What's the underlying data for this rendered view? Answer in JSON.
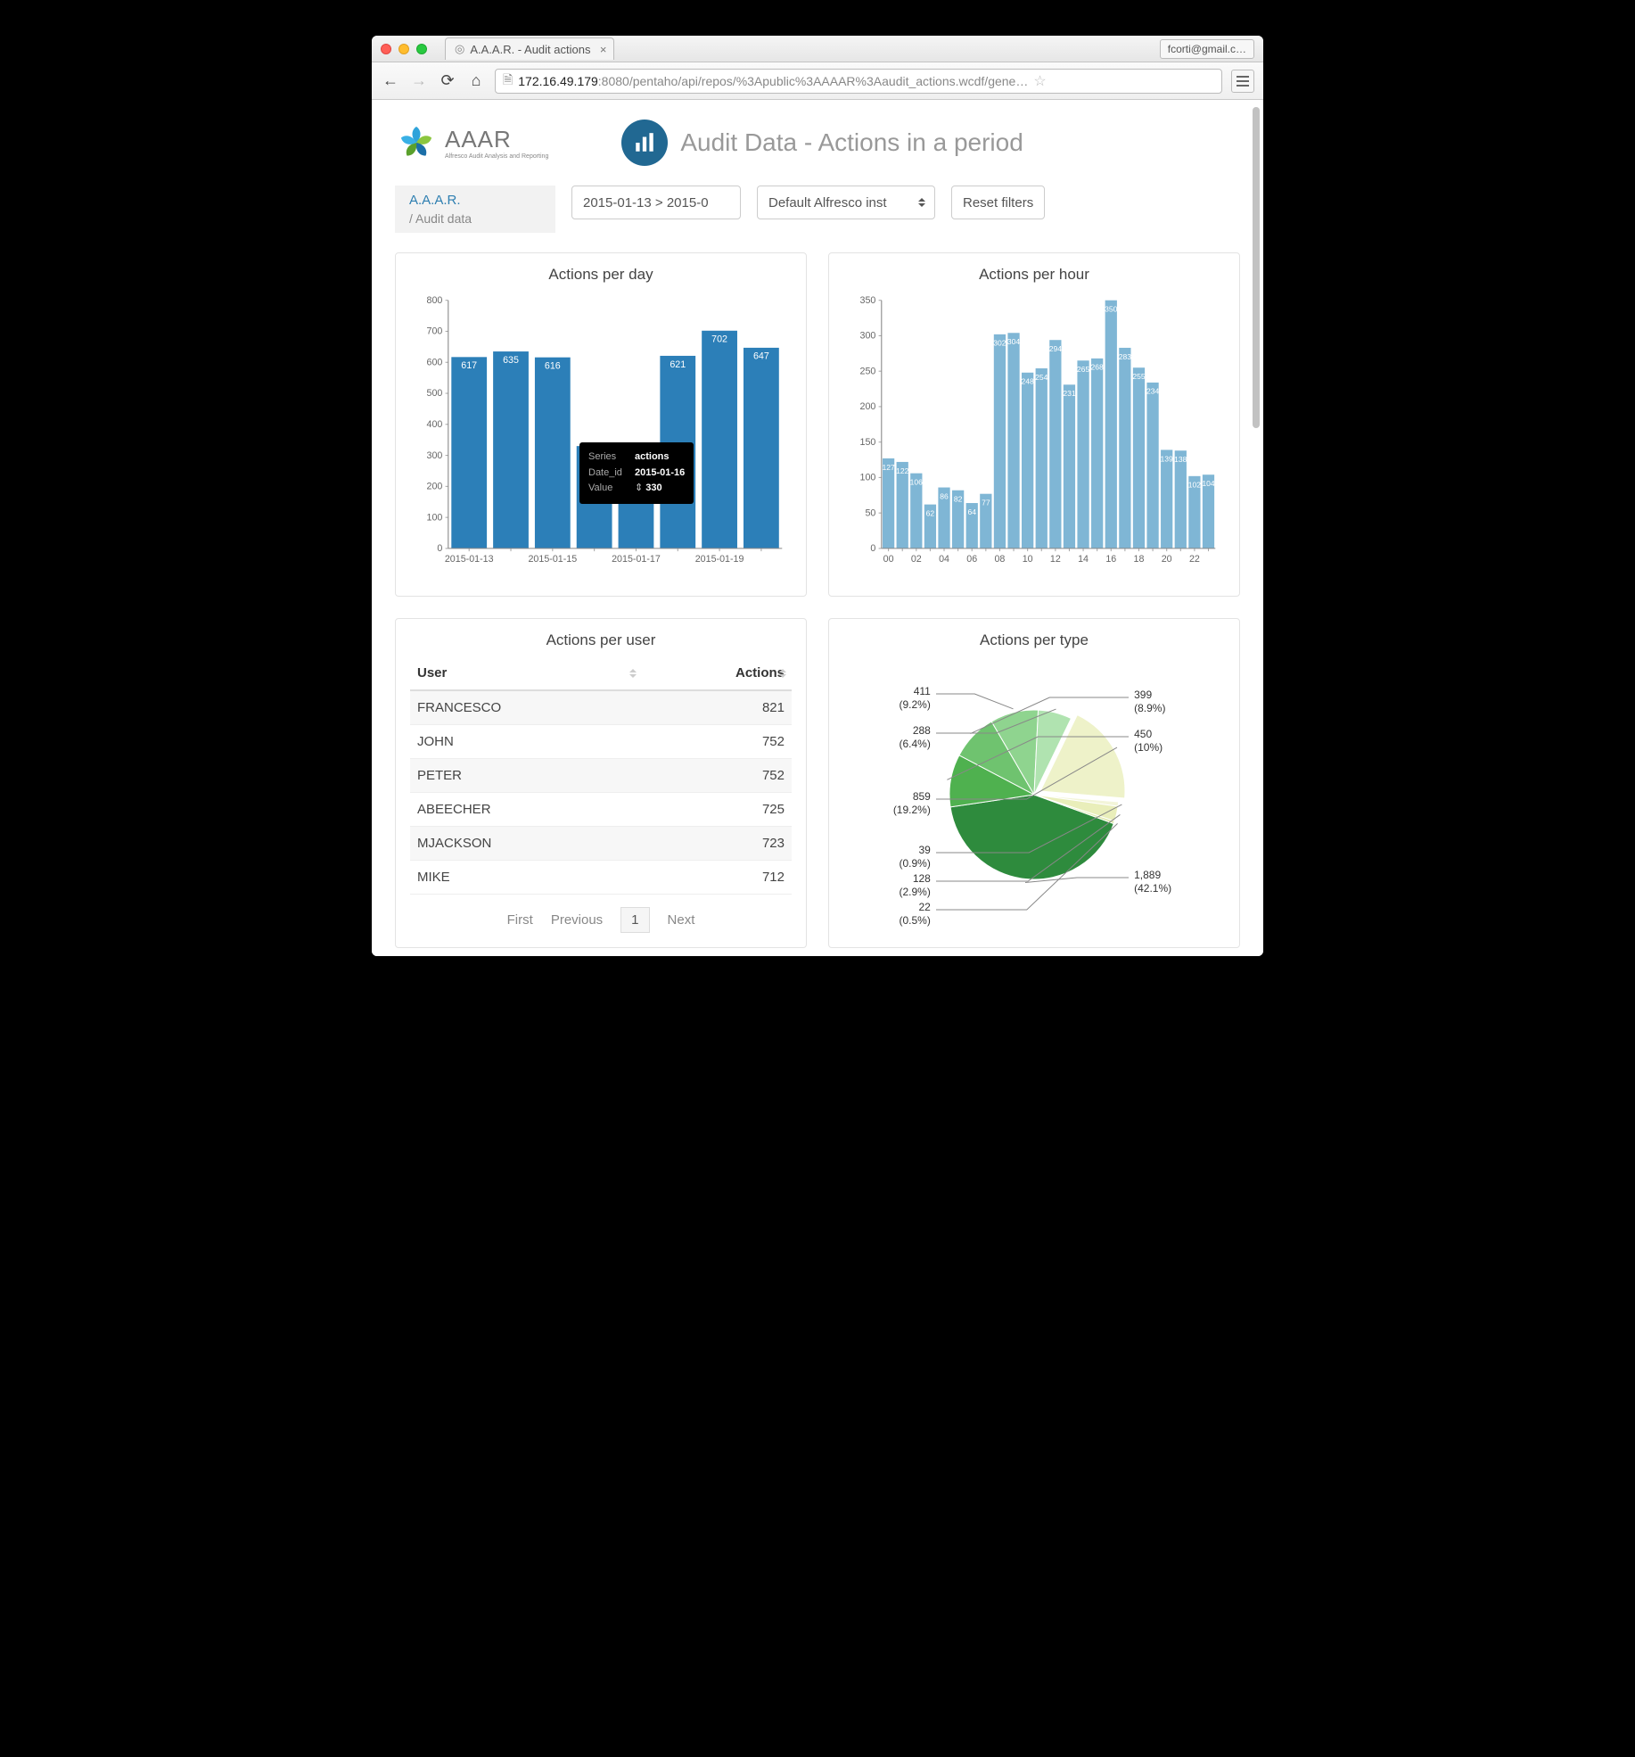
{
  "browser": {
    "tab_title": "A.A.A.R. - Audit actions",
    "profile": "fcorti@gmail.c…",
    "url_host": "172.16.49.179",
    "url_port_path": ":8080/pentaho/api/repos/%3Apublic%3AAAAR%3Aaudit_actions.wcdf/gene…"
  },
  "header": {
    "logo_text": "AAAR",
    "logo_sub": "Alfresco Audit Analysis and Reporting",
    "page_title": "Audit Data - Actions in a period"
  },
  "breadcrumb": {
    "root": "A.A.A.R.",
    "sub": "/  Audit data"
  },
  "controls": {
    "date_range": "2015-01-13 > 2015-0",
    "instance": "Default Alfresco inst",
    "reset_label": "Reset filters"
  },
  "actions_per_day": {
    "title": "Actions per day",
    "type": "bar",
    "bar_color": "#2c7fb8",
    "categories": [
      "2015-01-13",
      "2015-01-14",
      "2015-01-15",
      "2015-01-16",
      "2015-01-17",
      "2015-01-18",
      "2015-01-19",
      "2015-01-20"
    ],
    "x_ticks": [
      "2015-01-13",
      "2015-01-15",
      "2015-01-17",
      "2015-01-19"
    ],
    "values": [
      617,
      635,
      616,
      330,
      317,
      621,
      702,
      647
    ],
    "ylim": [
      0,
      800
    ],
    "ytick_step": 100,
    "tooltip": {
      "series_label": "Series",
      "series_value": "actions",
      "date_label": "Date_id",
      "date_value": "2015-01-16",
      "value_label": "Value",
      "value_value": "330"
    }
  },
  "actions_per_hour": {
    "title": "Actions per hour",
    "type": "bar",
    "bar_color": "#7fb6d5",
    "categories": [
      "00",
      "01",
      "02",
      "03",
      "04",
      "05",
      "06",
      "07",
      "08",
      "09",
      "10",
      "11",
      "12",
      "13",
      "14",
      "15",
      "16",
      "17",
      "18",
      "19",
      "20",
      "21",
      "22",
      "23"
    ],
    "x_ticks": [
      "00",
      "02",
      "04",
      "06",
      "08",
      "10",
      "12",
      "14",
      "16",
      "18",
      "20",
      "22"
    ],
    "values": [
      127,
      122,
      106,
      62,
      86,
      82,
      64,
      77,
      302,
      304,
      248,
      254,
      294,
      231,
      265,
      268,
      350,
      283,
      255,
      234,
      139,
      138,
      102,
      104
    ],
    "ylim": [
      0,
      350
    ],
    "ytick_step": 50
  },
  "actions_per_user": {
    "title": "Actions per user",
    "columns": [
      "User",
      "Actions"
    ],
    "rows": [
      [
        "FRANCESCO",
        "821"
      ],
      [
        "JOHN",
        "752"
      ],
      [
        "PETER",
        "752"
      ],
      [
        "ABEECHER",
        "725"
      ],
      [
        "MJACKSON",
        "723"
      ],
      [
        "MIKE",
        "712"
      ]
    ],
    "pager": {
      "first": "First",
      "prev": "Previous",
      "page": "1",
      "next": "Next"
    }
  },
  "actions_per_type": {
    "title": "Actions per type",
    "type": "pie",
    "slices": [
      {
        "value": 1889,
        "pct": "42.1%",
        "color": "#2e8b3d"
      },
      {
        "value": 450,
        "pct": "10%",
        "color": "#4fb14f"
      },
      {
        "value": 399,
        "pct": "8.9%",
        "color": "#6fc36f"
      },
      {
        "value": 411,
        "pct": "9.2%",
        "color": "#8fd48f"
      },
      {
        "value": 288,
        "pct": "6.4%",
        "color": "#b0e3b0"
      },
      {
        "value": 859,
        "pct": "19.2%",
        "color": "#eef2c9"
      },
      {
        "value": 39,
        "pct": "0.9%",
        "color": "#f3f5d9"
      },
      {
        "value": 128,
        "pct": "2.9%",
        "color": "#e9eeba"
      },
      {
        "value": 22,
        "pct": "0.5%",
        "color": "#dde7a8"
      }
    ]
  }
}
